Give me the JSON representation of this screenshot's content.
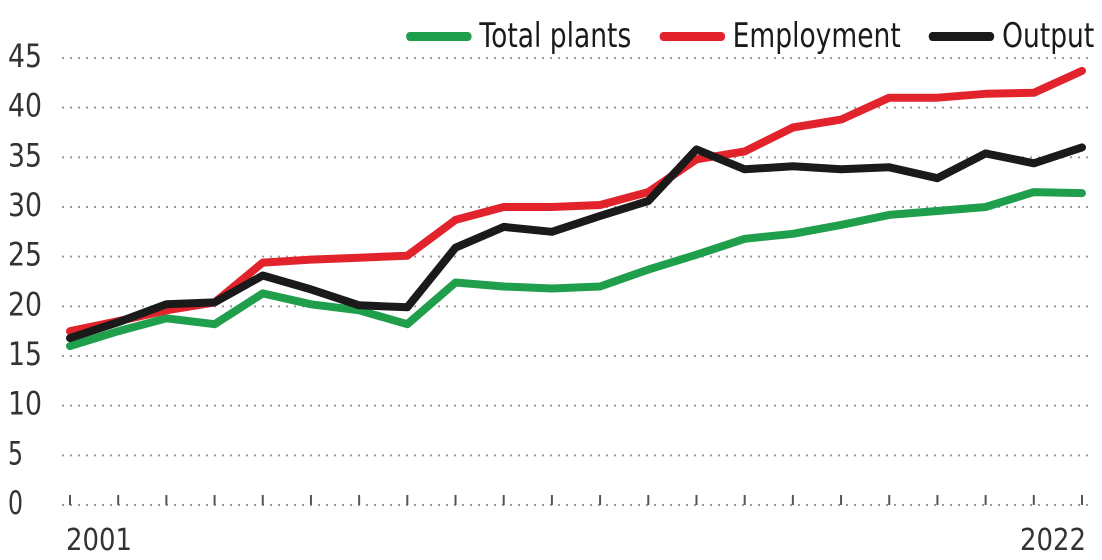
{
  "chart_data": {
    "type": "line",
    "x": [
      2001,
      2002,
      2003,
      2004,
      2005,
      2006,
      2007,
      2008,
      2009,
      2010,
      2011,
      2012,
      2013,
      2014,
      2015,
      2016,
      2017,
      2018,
      2019,
      2020,
      2021,
      2022
    ],
    "x_tick_labels": [
      "2001",
      "2022"
    ],
    "y_ticks": [
      0,
      5,
      10,
      15,
      20,
      25,
      30,
      35,
      40,
      45
    ],
    "ylim": [
      0,
      45
    ],
    "grid": "dotted horizontal",
    "legend_position": "top-right",
    "series": [
      {
        "name": "Total plants",
        "color": "#1f9e4c",
        "values": [
          16.0,
          17.5,
          18.8,
          18.2,
          21.3,
          20.2,
          19.6,
          18.2,
          22.4,
          22.0,
          21.8,
          22.0,
          23.7,
          25.2,
          26.8,
          27.3,
          28.2,
          29.2,
          29.6,
          30.0,
          31.5,
          31.4
        ]
      },
      {
        "name": "Employment",
        "color": "#e2232b",
        "values": [
          17.5,
          18.5,
          19.6,
          20.4,
          24.4,
          24.7,
          24.9,
          25.1,
          28.7,
          30.0,
          30.0,
          30.2,
          31.5,
          34.8,
          35.6,
          38.0,
          38.8,
          41.0,
          41.0,
          41.4,
          41.5,
          43.7
        ]
      },
      {
        "name": "Output",
        "color": "#1a1a1a",
        "values": [
          16.8,
          18.4,
          20.2,
          20.4,
          23.1,
          21.7,
          20.1,
          19.9,
          25.9,
          28.0,
          27.5,
          29.1,
          30.6,
          35.8,
          33.8,
          34.1,
          33.8,
          34.0,
          32.9,
          35.4,
          34.4,
          36.0
        ]
      }
    ]
  }
}
